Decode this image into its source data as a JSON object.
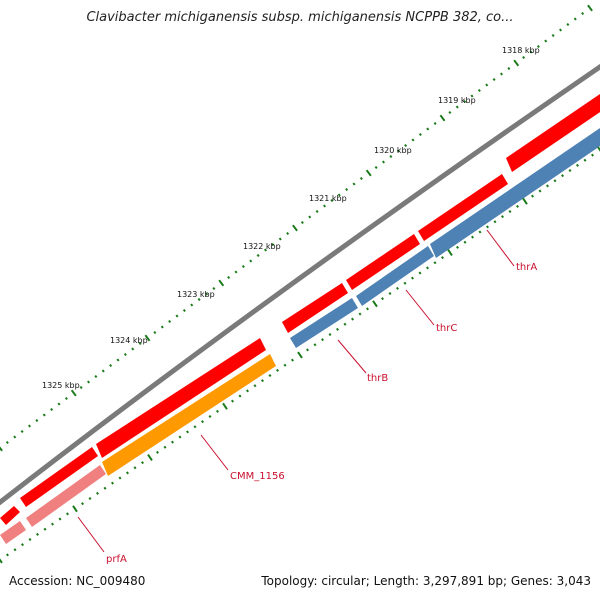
{
  "title": "Clavibacter michiganensis subsp. michiganensis NCPPB 382, co...",
  "footer": {
    "accession": "Accession: NC_009480",
    "summary": "Topology: circular; Length: 3,297,891 bp; Genes: 3,043"
  },
  "ticks": [
    {
      "label": "1318 kbp"
    },
    {
      "label": "1319 kbp"
    },
    {
      "label": "1320 kbp"
    },
    {
      "label": "1321 kbp"
    },
    {
      "label": "1322 kbp"
    },
    {
      "label": "1323 kbp"
    },
    {
      "label": "1324 kbp"
    },
    {
      "label": "1325 kbp"
    }
  ],
  "genes": [
    {
      "label": "thrA",
      "strand": "reverse"
    },
    {
      "label": "thrC",
      "strand": "reverse"
    },
    {
      "label": "thrB",
      "strand": "reverse"
    },
    {
      "label": "CMM_1156",
      "strand": "reverse"
    },
    {
      "label": "prfA",
      "strand": "reverse"
    }
  ],
  "colors": {
    "backbone": "#808080",
    "forward_cds": "#ff0000",
    "reverse_red": "#ff2020",
    "thrA_thrC": "#4f82b4",
    "CMM_1156": "#ff9900",
    "prfA": "#f08080",
    "tick": "#1a7a1a",
    "label": "#c8102e"
  }
}
